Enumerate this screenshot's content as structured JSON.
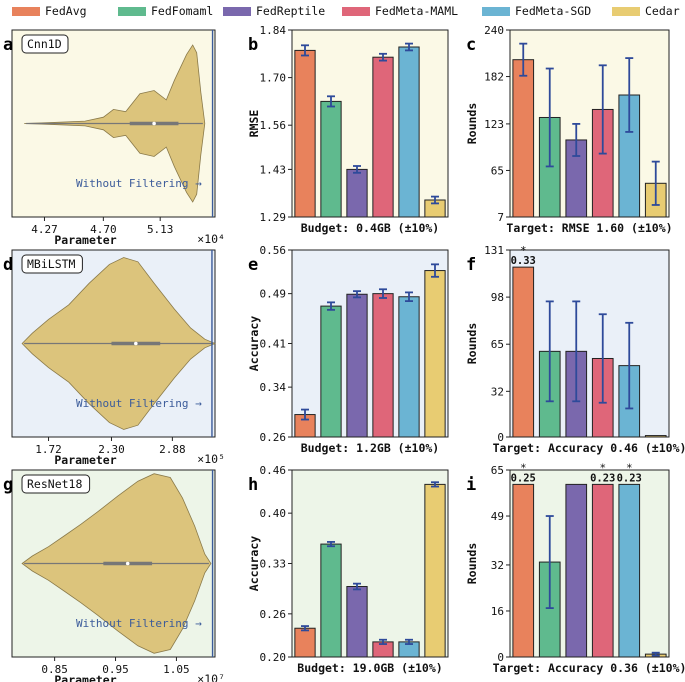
{
  "legend": {
    "items": [
      {
        "name": "FedAvg",
        "color": "#e8825c"
      },
      {
        "name": "FedFomaml",
        "color": "#5fba8e"
      },
      {
        "name": "FedReptile",
        "color": "#7a68ad"
      },
      {
        "name": "FedMeta-MAML",
        "color": "#df6679"
      },
      {
        "name": "FedMeta-SGD",
        "color": "#6bb4d3"
      },
      {
        "name": "Cedar",
        "color": "#e8cc72"
      }
    ]
  },
  "rows": [
    {
      "background": "#fbf9e6",
      "violin": {
        "letter": "a",
        "model": "Cnn1D",
        "annotation": "Without Filtering →",
        "xlabel": "Parameter",
        "multiplier": "×10⁴",
        "ticks": [
          "4.27",
          "4.70",
          "5.13"
        ]
      },
      "bar": {
        "letter": "b",
        "ylabel": "RMSE",
        "ylim": [
          1.29,
          1.84
        ],
        "yticks": [
          "1.29",
          "1.43",
          "1.56",
          "1.70",
          "1.84"
        ],
        "xlabel": "Budget: 0.4GB (±10%)",
        "values": [
          1.78,
          1.63,
          1.43,
          1.76,
          1.79,
          1.34
        ],
        "errors": [
          0.015,
          0.015,
          0.01,
          0.01,
          0.01,
          0.01
        ]
      },
      "rounds": {
        "letter": "c",
        "ylabel": "Rounds",
        "ylim": [
          7,
          240
        ],
        "yticks": [
          "7",
          "65",
          "123",
          "182",
          "240"
        ],
        "xlabel": "Target: RMSE 1.60 (±10%)",
        "values": [
          203,
          131,
          103,
          141,
          159,
          49
        ],
        "errors": [
          20,
          61,
          20,
          55,
          46,
          27
        ],
        "star_labels": [
          "",
          "",
          "",
          "",
          "",
          ""
        ]
      }
    },
    {
      "background": "#eaf0f8",
      "violin": {
        "letter": "d",
        "model": "MBiLSTM",
        "annotation": "Without Filtering →",
        "xlabel": "Parameter",
        "multiplier": "×10⁵",
        "ticks": [
          "1.72",
          "2.30",
          "2.88"
        ]
      },
      "bar": {
        "letter": "e",
        "ylabel": "Accuracy",
        "ylim": [
          0.26,
          0.56
        ],
        "yticks": [
          "0.26",
          "0.34",
          "0.41",
          "0.49",
          "0.56"
        ],
        "xlabel": "Budget: 1.2GB (±10%)",
        "values": [
          0.296,
          0.47,
          0.489,
          0.49,
          0.485,
          0.527
        ],
        "errors": [
          0.008,
          0.006,
          0.005,
          0.007,
          0.007,
          0.01
        ]
      },
      "rounds": {
        "letter": "f",
        "ylabel": "Rounds",
        "ylim": [
          0,
          131
        ],
        "yticks": [
          "0",
          "32",
          "65",
          "98",
          "131"
        ],
        "xlabel": "Target: Accuracy 0.46 (±10%)",
        "values": [
          119,
          60,
          60,
          55,
          50,
          1
        ],
        "errors": [
          0,
          35,
          35,
          31,
          30,
          0
        ],
        "star_labels": [
          "0.33",
          "",
          "",
          "",
          "",
          ""
        ]
      }
    },
    {
      "background": "#edf5e8",
      "violin": {
        "letter": "g",
        "model": "ResNet18",
        "annotation": "Without Filtering →",
        "xlabel": "Parameter",
        "multiplier": "×10⁷",
        "ticks": [
          "0.85",
          "0.95",
          "1.05"
        ]
      },
      "bar": {
        "letter": "h",
        "ylabel": "Accuracy",
        "ylim": [
          0.2,
          0.46
        ],
        "yticks": [
          "0.20",
          "0.26",
          "0.33",
          "0.40",
          "0.46"
        ],
        "xlabel": "Budget: 19.0GB (±10%)",
        "values": [
          0.24,
          0.357,
          0.298,
          0.221,
          0.221,
          0.44
        ],
        "errors": [
          0.003,
          0.003,
          0.004,
          0.003,
          0.003,
          0.003
        ]
      },
      "rounds": {
        "letter": "i",
        "ylabel": "Rounds",
        "ylim": [
          0,
          65
        ],
        "yticks": [
          "0",
          "16",
          "32",
          "49",
          "65"
        ],
        "xlabel": "Target: Accuracy 0.36 (±10%)",
        "values": [
          60,
          33,
          60,
          60,
          60,
          1
        ],
        "errors": [
          0,
          16,
          0,
          0,
          0,
          0.5
        ],
        "star_labels": [
          "0.25",
          "",
          "",
          "0.23",
          "0.23",
          ""
        ]
      }
    }
  ],
  "chart_data": [
    {
      "panel": "a",
      "type": "violin",
      "title": "Cnn1D",
      "xlabel": "Parameter",
      "x_ticks": [
        "4.27",
        "4.70",
        "5.13"
      ],
      "multiplier": "×10⁴",
      "annotation": "Without Filtering →"
    },
    {
      "panel": "b",
      "type": "bar",
      "categories": [
        "FedAvg",
        "FedFomaml",
        "FedReptile",
        "FedMeta-MAML",
        "FedMeta-SGD",
        "Cedar"
      ],
      "values": [
        1.78,
        1.63,
        1.43,
        1.76,
        1.79,
        1.34
      ],
      "ylabel": "RMSE",
      "xlabel": "Budget: 0.4GB (±10%)",
      "ylim": [
        1.29,
        1.84
      ]
    },
    {
      "panel": "c",
      "type": "bar",
      "categories": [
        "FedAvg",
        "FedFomaml",
        "FedReptile",
        "FedMeta-MAML",
        "FedMeta-SGD",
        "Cedar"
      ],
      "values": [
        203,
        131,
        103,
        141,
        159,
        49
      ],
      "ylabel": "Rounds",
      "xlabel": "Target: RMSE 1.60 (±10%)",
      "ylim": [
        7,
        240
      ]
    },
    {
      "panel": "d",
      "type": "violin",
      "title": "MBiLSTM",
      "xlabel": "Parameter",
      "x_ticks": [
        "1.72",
        "2.30",
        "2.88"
      ],
      "multiplier": "×10⁵",
      "annotation": "Without Filtering →"
    },
    {
      "panel": "e",
      "type": "bar",
      "categories": [
        "FedAvg",
        "FedFomaml",
        "FedReptile",
        "FedMeta-MAML",
        "FedMeta-SGD",
        "Cedar"
      ],
      "values": [
        0.296,
        0.47,
        0.489,
        0.49,
        0.485,
        0.527
      ],
      "ylabel": "Accuracy",
      "xlabel": "Budget: 1.2GB (±10%)",
      "ylim": [
        0.26,
        0.56
      ]
    },
    {
      "panel": "f",
      "type": "bar",
      "categories": [
        "FedAvg",
        "FedFomaml",
        "FedReptile",
        "FedMeta-MAML",
        "FedMeta-SGD",
        "Cedar"
      ],
      "values": [
        119,
        60,
        60,
        55,
        50,
        1
      ],
      "ylabel": "Rounds",
      "xlabel": "Target: Accuracy 0.46 (±10%)",
      "ylim": [
        0,
        131
      ],
      "annotations": [
        "*0.33 on FedAvg"
      ]
    },
    {
      "panel": "g",
      "type": "violin",
      "title": "ResNet18",
      "xlabel": "Parameter",
      "x_ticks": [
        "0.85",
        "0.95",
        "1.05"
      ],
      "multiplier": "×10⁷",
      "annotation": "Without Filtering →"
    },
    {
      "panel": "h",
      "type": "bar",
      "categories": [
        "FedAvg",
        "FedFomaml",
        "FedReptile",
        "FedMeta-MAML",
        "FedMeta-SGD",
        "Cedar"
      ],
      "values": [
        0.24,
        0.357,
        0.298,
        0.221,
        0.221,
        0.44
      ],
      "ylabel": "Accuracy",
      "xlabel": "Budget: 19.0GB (±10%)",
      "ylim": [
        0.2,
        0.46
      ]
    },
    {
      "panel": "i",
      "type": "bar",
      "categories": [
        "FedAvg",
        "FedFomaml",
        "FedReptile",
        "FedMeta-MAML",
        "FedMeta-SGD",
        "Cedar"
      ],
      "values": [
        60,
        33,
        60,
        60,
        60,
        1
      ],
      "ylabel": "Rounds",
      "xlabel": "Target: Accuracy 0.36 (±10%)",
      "ylim": [
        0,
        65
      ],
      "annotations": [
        "*0.25 on FedAvg",
        "*0.23 on FedMeta-MAML",
        "*0.23 on FedMeta-SGD"
      ]
    }
  ]
}
